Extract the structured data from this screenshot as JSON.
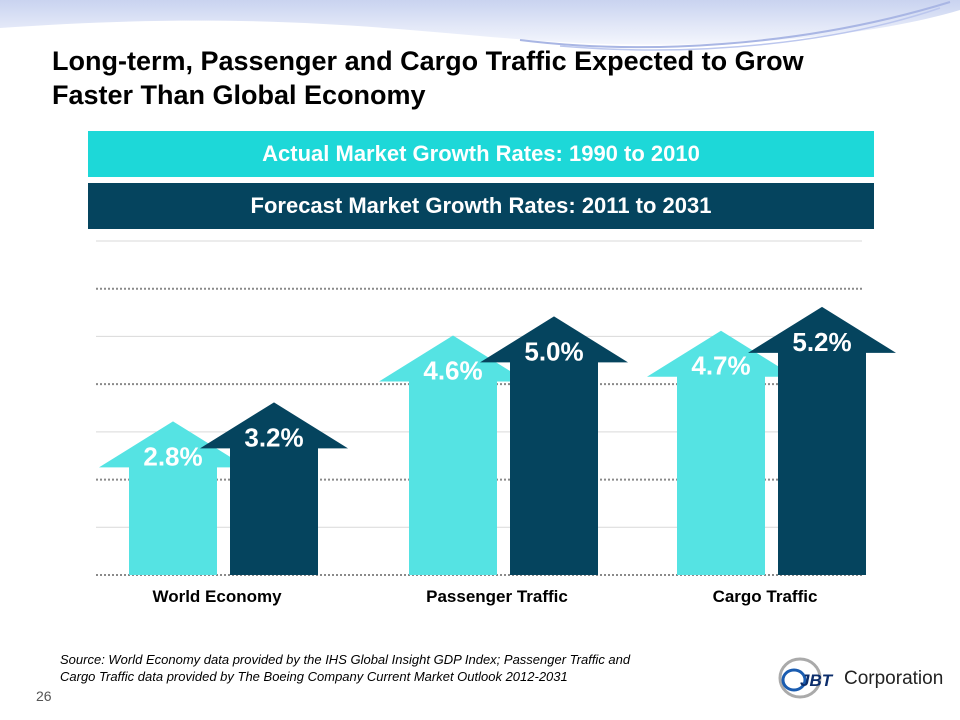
{
  "slide": {
    "title_line1": "Long-term, Passenger and Cargo Traffic Expected to Grow",
    "title_line2": "Faster Than Global Economy",
    "page_number": "26",
    "source_line1": "Source: World Economy data provided by the IHS Global Insight  GDP Index; Passenger Traffic and",
    "source_line2": "Cargo Traffic data provided by The Boeing Company Current Market Outlook 2012-2031",
    "logo": {
      "mark": "JBT",
      "text": "Corporation"
    }
  },
  "legend": {
    "actual": {
      "label": "Actual Market Growth Rates:  1990 to 2010",
      "color": "#1dd8d8"
    },
    "forecast": {
      "label": "Forecast Market Growth Rates: 2011 to 2031",
      "color": "#05445e"
    }
  },
  "chart_data": {
    "type": "bar",
    "title": "",
    "xlabel": "",
    "ylabel": "",
    "categories": [
      "World Economy",
      "Passenger Traffic",
      "Cargo Traffic"
    ],
    "series": [
      {
        "name": "Actual Market Growth Rates: 1990 to 2010",
        "values": [
          2.8,
          4.6,
          4.7
        ],
        "labels": [
          "2.8%",
          "4.6%",
          "4.7%"
        ],
        "color": "#55e3e3"
      },
      {
        "name": "Forecast Market Growth Rates: 2011 to 2031",
        "values": [
          3.2,
          5.0,
          5.2
        ],
        "labels": [
          "3.2%",
          "5.0%",
          "5.2%"
        ],
        "color": "#05445e"
      }
    ],
    "ylim": [
      0,
      7
    ],
    "grid": true,
    "legend_position": "top",
    "mark_style": "up-arrow"
  }
}
